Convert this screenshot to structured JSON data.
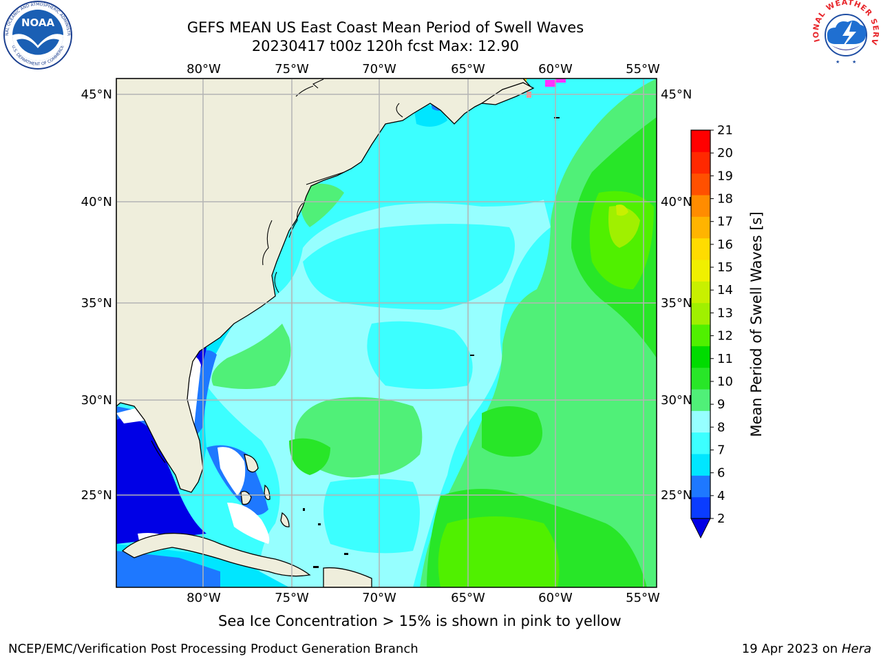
{
  "title_line1": "GEFS MEAN US East Coast Mean Period of Swell Waves",
  "title_line2": "20230417 t00z 120h fcst   Max: 12.90",
  "lon_labels": [
    "80°W",
    "75°W",
    "70°W",
    "65°W",
    "60°W",
    "55°W"
  ],
  "lat_labels": [
    "45°N",
    "40°N",
    "35°N",
    "30°N",
    "25°N"
  ],
  "colorbar": {
    "label": "Mean Period of Swell Waves [s]",
    "ticks": [
      "2",
      "4",
      "6",
      "7",
      "8",
      "9",
      "10",
      "11",
      "12",
      "13",
      "14",
      "15",
      "16",
      "17",
      "18",
      "19",
      "20",
      "21"
    ],
    "colors": [
      "#0a3cff",
      "#1e78ff",
      "#00e6ff",
      "#3cffff",
      "#96ffff",
      "#50f078",
      "#28e628",
      "#00dc00",
      "#50f000",
      "#a0f000",
      "#c8f000",
      "#f0f000",
      "#ffdc00",
      "#ffb400",
      "#ff8c00",
      "#ff5000",
      "#ff2800",
      "#ff0000"
    ],
    "under_color": "#0000e6"
  },
  "caption": "Sea Ice Concentration > 15% is shown in pink to yellow",
  "footer_left": "NCEP/EMC/Verification Post Processing Product Generation Branch",
  "footer_date": "19 Apr 2023 on ",
  "footer_machine": "Hera",
  "logos": {
    "noaa": "NOAA",
    "noaa_ring_top": "NATIONAL OCEANIC AND ATMOSPHERIC ADMINISTRATION",
    "noaa_ring_bottom": "U.S. DEPARTMENT OF COMMERCE",
    "nws_ring": "NATIONAL WEATHER SERVICE"
  },
  "colors": {
    "land": "#efeedc",
    "grid": "#b4b4b4",
    "ocean_base": "#3cffff"
  }
}
